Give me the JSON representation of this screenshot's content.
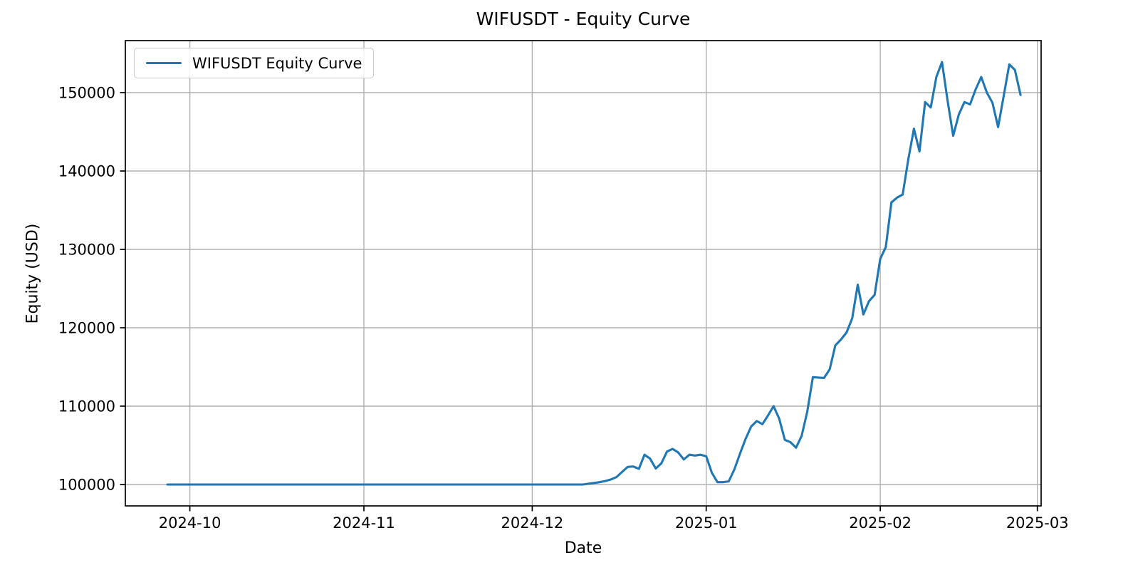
{
  "chart": {
    "title": "WIFUSDT - Equity Curve",
    "xlabel": "Date",
    "ylabel": "Equity (USD)",
    "legend_label": "WIFUSDT Equity Curve",
    "line_color": "#1f77b4",
    "grid_color": "#b0b0b0",
    "spine_color": "#000000",
    "text_color": "#000000",
    "background_color": "#ffffff"
  },
  "chart_data": {
    "type": "line",
    "title": "WIFUSDT - Equity Curve",
    "xlabel": "Date",
    "ylabel": "Equity (USD)",
    "grid": true,
    "legend_position": "upper left",
    "legend": [
      "WIFUSDT Equity Curve"
    ],
    "x_axis_type": "date",
    "x_tick_labels": [
      "2024-10",
      "2024-11",
      "2024-12",
      "2025-01",
      "2025-02",
      "2025-03"
    ],
    "x_tick_dates": [
      "2024-10-01",
      "2024-11-01",
      "2024-12-01",
      "2025-01-01",
      "2025-02-01",
      "2025-03-01"
    ],
    "y_ticks": [
      100000,
      110000,
      120000,
      130000,
      140000,
      150000
    ],
    "xlim": [
      "2024-09-19T12:00:00Z",
      "2025-03-01T16:00:00Z"
    ],
    "ylim": [
      97273,
      156636
    ],
    "series": [
      {
        "name": "WIFUSDT Equity Curve",
        "color": "#1f77b4",
        "points": [
          [
            "2024-09-27",
            100000
          ],
          [
            "2024-10-01",
            100000
          ],
          [
            "2024-10-15",
            100000
          ],
          [
            "2024-11-01",
            100000
          ],
          [
            "2024-11-15",
            100000
          ],
          [
            "2024-12-01",
            100000
          ],
          [
            "2024-12-10",
            100000
          ],
          [
            "2024-12-11",
            100100
          ],
          [
            "2024-12-12",
            100200
          ],
          [
            "2024-12-13",
            100300
          ],
          [
            "2024-12-14",
            100450
          ],
          [
            "2024-12-15",
            100650
          ],
          [
            "2024-12-16",
            100950
          ],
          [
            "2024-12-17",
            101600
          ],
          [
            "2024-12-18",
            102250
          ],
          [
            "2024-12-19",
            102300
          ],
          [
            "2024-12-20",
            102000
          ],
          [
            "2024-12-21",
            103800
          ],
          [
            "2024-12-22",
            103300
          ],
          [
            "2024-12-23",
            102050
          ],
          [
            "2024-12-24",
            102700
          ],
          [
            "2024-12-25",
            104200
          ],
          [
            "2024-12-26",
            104550
          ],
          [
            "2024-12-27",
            104100
          ],
          [
            "2024-12-28",
            103200
          ],
          [
            "2024-12-29",
            103800
          ],
          [
            "2024-12-30",
            103700
          ],
          [
            "2024-12-31",
            103800
          ],
          [
            "2025-01-01",
            103600
          ],
          [
            "2025-01-02",
            101500
          ],
          [
            "2025-01-03",
            100300
          ],
          [
            "2025-01-04",
            100300
          ],
          [
            "2025-01-05",
            100400
          ],
          [
            "2025-01-06",
            101900
          ],
          [
            "2025-01-07",
            103900
          ],
          [
            "2025-01-08",
            105800
          ],
          [
            "2025-01-09",
            107400
          ],
          [
            "2025-01-10",
            108100
          ],
          [
            "2025-01-11",
            107700
          ],
          [
            "2025-01-12",
            108800
          ],
          [
            "2025-01-13",
            110000
          ],
          [
            "2025-01-14",
            108400
          ],
          [
            "2025-01-15",
            105700
          ],
          [
            "2025-01-16",
            105400
          ],
          [
            "2025-01-17",
            104700
          ],
          [
            "2025-01-18",
            106200
          ],
          [
            "2025-01-19",
            109300
          ],
          [
            "2025-01-20",
            113700
          ],
          [
            "2025-01-21",
            113650
          ],
          [
            "2025-01-22",
            113600
          ],
          [
            "2025-01-23",
            114700
          ],
          [
            "2025-01-24",
            117750
          ],
          [
            "2025-01-25",
            118500
          ],
          [
            "2025-01-26",
            119400
          ],
          [
            "2025-01-27",
            121200
          ],
          [
            "2025-01-28",
            125500
          ],
          [
            "2025-01-29",
            121700
          ],
          [
            "2025-01-30",
            123400
          ],
          [
            "2025-01-31",
            124200
          ],
          [
            "2025-02-01",
            128800
          ],
          [
            "2025-02-02",
            130300
          ],
          [
            "2025-02-03",
            136000
          ],
          [
            "2025-02-04",
            136600
          ],
          [
            "2025-02-05",
            137000
          ],
          [
            "2025-02-06",
            141500
          ],
          [
            "2025-02-07",
            145400
          ],
          [
            "2025-02-08",
            142500
          ],
          [
            "2025-02-09",
            148800
          ],
          [
            "2025-02-10",
            148100
          ],
          [
            "2025-02-11",
            152000
          ],
          [
            "2025-02-12",
            153900
          ],
          [
            "2025-02-13",
            149000
          ],
          [
            "2025-02-14",
            144500
          ],
          [
            "2025-02-15",
            147200
          ],
          [
            "2025-02-16",
            148800
          ],
          [
            "2025-02-17",
            148500
          ],
          [
            "2025-02-18",
            150400
          ],
          [
            "2025-02-19",
            152000
          ],
          [
            "2025-02-20",
            150000
          ],
          [
            "2025-02-21",
            148700
          ],
          [
            "2025-02-22",
            145600
          ],
          [
            "2025-02-23",
            149600
          ],
          [
            "2025-02-24",
            153600
          ],
          [
            "2025-02-25",
            152900
          ],
          [
            "2025-02-26",
            149700
          ]
        ]
      }
    ]
  }
}
